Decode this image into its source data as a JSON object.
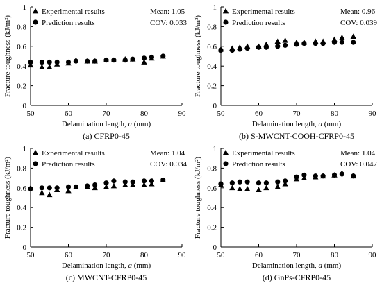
{
  "figure": {
    "marker_color": "#000000",
    "legend_labels": [
      "Experimental results",
      "Prediction results"
    ]
  },
  "chart_data": [
    {
      "type": "scatter",
      "caption": "(a) CFRP0-45",
      "xlabel": "Delamination length, ",
      "xlabel_var": "a",
      "xlabel_unit": " (mm)",
      "ylabel": "Fracture toughness (kJ/m²)",
      "xlim": [
        50,
        90
      ],
      "ylim": [
        0,
        1
      ],
      "xticks": [
        50,
        60,
        70,
        80,
        90
      ],
      "xtick_labels": [
        "50",
        "60",
        "70",
        "80",
        "90"
      ],
      "yticks": [
        0,
        0.2,
        0.4,
        0.6,
        0.8,
        1
      ],
      "ytick_labels": [
        "0",
        "0.2",
        "0.4",
        "0.6",
        "0.8",
        "1"
      ],
      "legend": "top-left",
      "stats": [
        "Mean: 1.05",
        "COV: 0.033"
      ],
      "series": [
        {
          "name": "Experimental results",
          "marker": "triangle",
          "x": [
            50,
            53,
            55,
            57,
            60,
            62,
            65,
            67,
            70,
            72,
            75,
            77,
            80,
            82,
            85
          ],
          "y": [
            0.41,
            0.39,
            0.39,
            0.42,
            0.43,
            0.46,
            0.45,
            0.45,
            0.46,
            0.46,
            0.47,
            0.47,
            0.44,
            0.48,
            0.5
          ]
        },
        {
          "name": "Prediction results",
          "marker": "circle",
          "x": [
            50,
            53,
            55,
            57,
            60,
            62,
            65,
            67,
            70,
            72,
            75,
            77,
            80,
            82,
            85
          ],
          "y": [
            0.44,
            0.44,
            0.44,
            0.44,
            0.44,
            0.45,
            0.45,
            0.45,
            0.46,
            0.46,
            0.46,
            0.47,
            0.48,
            0.49,
            0.5
          ]
        }
      ]
    },
    {
      "type": "scatter",
      "caption": "(b) S-MWCNT-COOH-CFRP0-45",
      "xlabel": "Delamination length, ",
      "xlabel_var": "a",
      "xlabel_unit": " (mm)",
      "ylabel": "Fracture toughness (kJ/m²)",
      "xlim": [
        50,
        90
      ],
      "ylim": [
        0,
        1
      ],
      "xticks": [
        50,
        60,
        70,
        80,
        90
      ],
      "xtick_labels": [
        "50",
        "60",
        "70",
        "80",
        "90"
      ],
      "yticks": [
        0,
        0.2,
        0.4,
        0.6,
        0.8,
        1
      ],
      "ytick_labels": [
        "0",
        "0.2",
        "0.4",
        "0.6",
        "0.8",
        "1"
      ],
      "legend": "top-left",
      "stats": [
        "Mean: 0.96",
        "COV: 0.039"
      ],
      "series": [
        {
          "name": "Experimental results",
          "marker": "triangle",
          "x": [
            50,
            53,
            55,
            57,
            60,
            62,
            65,
            67,
            70,
            72,
            75,
            77,
            80,
            82,
            85
          ],
          "y": [
            0.57,
            0.58,
            0.59,
            0.6,
            0.6,
            0.62,
            0.65,
            0.66,
            0.64,
            0.64,
            0.65,
            0.65,
            0.67,
            0.69,
            0.7
          ]
        },
        {
          "name": "Prediction results",
          "marker": "circle",
          "x": [
            50,
            53,
            55,
            57,
            60,
            62,
            65,
            67,
            70,
            72,
            75,
            77,
            80,
            82,
            85
          ],
          "y": [
            0.56,
            0.56,
            0.57,
            0.58,
            0.59,
            0.59,
            0.6,
            0.61,
            0.62,
            0.63,
            0.63,
            0.63,
            0.64,
            0.64,
            0.64
          ]
        }
      ]
    },
    {
      "type": "scatter",
      "caption": "(c) MWCNT-CFRP0-45",
      "xlabel": "Delamination length, ",
      "xlabel_var": "a",
      "xlabel_unit": " (mm)",
      "ylabel": "Fracture toughness (kJ/m²)",
      "xlim": [
        50,
        90
      ],
      "ylim": [
        0,
        1
      ],
      "xticks": [
        50,
        60,
        70,
        80,
        90
      ],
      "xtick_labels": [
        "50",
        "60",
        "70",
        "80",
        "90"
      ],
      "yticks": [
        0,
        0.2,
        0.4,
        0.6,
        0.8,
        1
      ],
      "ytick_labels": [
        "0",
        "0.2",
        "0.4",
        "0.6",
        "0.8",
        "1"
      ],
      "legend": "top-left",
      "stats": [
        "Mean: 1.04",
        "COV: 0.034"
      ],
      "series": [
        {
          "name": "Experimental results",
          "marker": "triangle",
          "x": [
            50,
            53,
            55,
            57,
            60,
            62,
            65,
            67,
            70,
            72,
            75,
            77,
            80,
            82,
            85
          ],
          "y": [
            0.6,
            0.55,
            0.53,
            0.58,
            0.57,
            0.61,
            0.61,
            0.6,
            0.61,
            0.62,
            0.63,
            0.63,
            0.63,
            0.64,
            0.68
          ]
        },
        {
          "name": "Prediction results",
          "marker": "circle",
          "x": [
            50,
            53,
            55,
            57,
            60,
            62,
            65,
            67,
            70,
            72,
            75,
            77,
            80,
            82,
            85
          ],
          "y": [
            0.59,
            0.6,
            0.6,
            0.6,
            0.61,
            0.61,
            0.62,
            0.63,
            0.65,
            0.67,
            0.66,
            0.66,
            0.67,
            0.67,
            0.68
          ]
        }
      ]
    },
    {
      "type": "scatter",
      "caption": "(d) GnPs-CFRP0-45",
      "xlabel": "Delamination length, ",
      "xlabel_var": "a",
      "xlabel_unit": " (mm)",
      "ylabel": "Fracture toughness (kJ/m²)",
      "xlim": [
        50,
        90
      ],
      "ylim": [
        0,
        1
      ],
      "xticks": [
        50,
        60,
        70,
        80,
        90
      ],
      "xtick_labels": [
        "50",
        "60",
        "70",
        "80",
        "90"
      ],
      "yticks": [
        0,
        0.2,
        0.4,
        0.6,
        0.8,
        1
      ],
      "ytick_labels": [
        "0",
        "0.2",
        "0.4",
        "0.6",
        "0.8",
        "1"
      ],
      "legend": "top-left",
      "stats": [
        "Mean: 1.04",
        "COV: 0.047"
      ],
      "series": [
        {
          "name": "Experimental results",
          "marker": "triangle",
          "x": [
            50,
            53,
            55,
            57,
            60,
            62,
            65,
            67,
            70,
            72,
            75,
            77,
            80,
            82,
            85
          ],
          "y": [
            0.63,
            0.6,
            0.59,
            0.59,
            0.58,
            0.6,
            0.61,
            0.64,
            0.69,
            0.7,
            0.71,
            0.72,
            0.73,
            0.75,
            0.72
          ]
        },
        {
          "name": "Prediction results",
          "marker": "circle",
          "x": [
            50,
            53,
            55,
            57,
            60,
            62,
            65,
            67,
            70,
            72,
            75,
            77,
            80,
            82,
            85
          ],
          "y": [
            0.64,
            0.65,
            0.66,
            0.66,
            0.65,
            0.65,
            0.66,
            0.67,
            0.71,
            0.73,
            0.72,
            0.72,
            0.73,
            0.74,
            0.72
          ]
        }
      ]
    }
  ]
}
